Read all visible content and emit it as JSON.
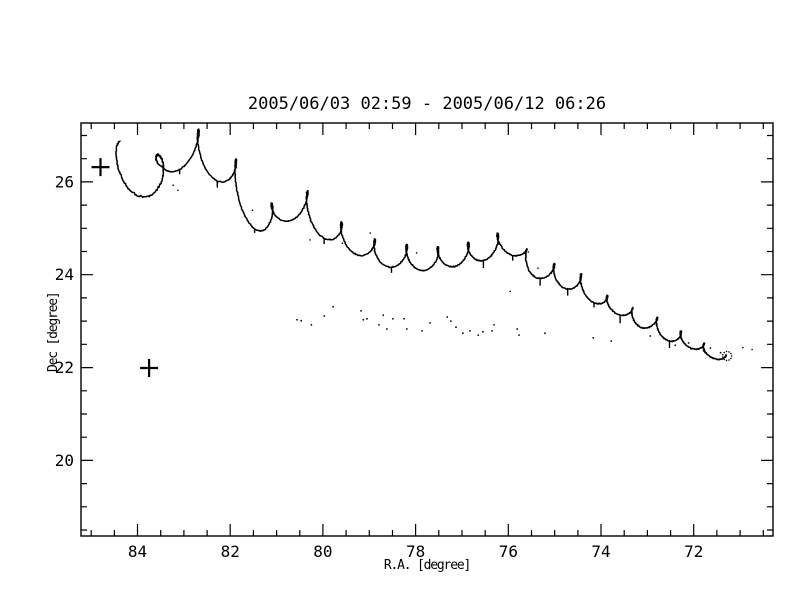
{
  "window": {
    "background": "#ffffff",
    "foreground": "#000000"
  },
  "chart_data": {
    "type": "line",
    "title": "2005/06/03 02:59 - 2005/06/12 06:26",
    "xlabel": "R.A. [degree]",
    "ylabel": "Dec [degree]",
    "xlim": [
      85.22,
      70.29
    ],
    "ylim": [
      18.37,
      27.27
    ],
    "x_axis_reversed": true,
    "grid": false,
    "x_ticks_major": [
      84,
      82,
      80,
      78,
      76,
      74,
      72
    ],
    "y_ticks_major": [
      20,
      22,
      24,
      26
    ],
    "minor_tick_interval": 0.5,
    "axis_style": "IDL-style box axes with inward major/minor ticks on all four sides",
    "line_color": "#000000",
    "series": [
      {
        "name": "main-trajectory",
        "style": "solid black line descending from upper-left to lower-right with cycloidal scallops and small loops/knots at the cusps",
        "color": "#000000",
        "start": {
          "ra": 84.4,
          "dec": 26.7
        },
        "end": {
          "ra": 71.4,
          "dec": 22.3
        },
        "envelope": [
          [
            84.38,
            26.65
          ],
          [
            83.73,
            26.26
          ],
          [
            82.82,
            27.08
          ],
          [
            81.96,
            26.43
          ],
          [
            81.31,
            25.4
          ],
          [
            80.49,
            25.78
          ],
          [
            79.63,
            25.07
          ],
          [
            78.66,
            24.64
          ],
          [
            77.69,
            24.53
          ],
          [
            76.83,
            24.64
          ],
          [
            76.07,
            24.86
          ],
          [
            75.32,
            24.28
          ],
          [
            74.56,
            24.0
          ],
          [
            73.81,
            23.5
          ],
          [
            73.05,
            23.13
          ],
          [
            72.3,
            22.75
          ],
          [
            71.61,
            22.44
          ],
          [
            71.39,
            22.33
          ]
        ],
        "scallop_period_deg": [
          0.87,
          0.48
        ],
        "scallop_depth_deg": [
          0.68,
          0.22
        ],
        "loop_factor": 1.3,
        "start_loop_factor": 1.9
      },
      {
        "name": "secondary-dotted-trail",
        "style": "sparse dotted trail below the main curve",
        "color": "#000000",
        "points": [
          [
            80.56,
            23.03
          ],
          [
            80.47,
            23.01
          ],
          [
            80.25,
            22.92
          ],
          [
            79.97,
            23.11
          ],
          [
            79.78,
            23.31
          ],
          [
            79.18,
            23.22
          ],
          [
            79.13,
            23.03
          ],
          [
            79.05,
            23.05
          ],
          [
            78.79,
            22.92
          ],
          [
            78.7,
            23.13
          ],
          [
            78.62,
            22.83
          ],
          [
            78.49,
            23.05
          ],
          [
            78.25,
            23.05
          ],
          [
            78.19,
            22.83
          ],
          [
            77.86,
            22.79
          ],
          [
            77.69,
            22.96
          ],
          [
            77.32,
            23.09
          ],
          [
            77.24,
            23.0
          ],
          [
            77.13,
            22.87
          ],
          [
            76.98,
            22.74
          ],
          [
            76.83,
            22.79
          ],
          [
            76.65,
            22.7
          ],
          [
            76.55,
            22.77
          ],
          [
            76.35,
            22.79
          ],
          [
            76.31,
            22.92
          ],
          [
            75.81,
            22.83
          ],
          [
            75.77,
            22.7
          ],
          [
            75.21,
            22.74
          ],
          [
            74.17,
            22.64
          ],
          [
            73.78,
            22.57
          ],
          [
            72.94,
            22.68
          ],
          [
            72.4,
            22.48
          ],
          [
            72.11,
            22.53
          ],
          [
            71.79,
            22.36
          ],
          [
            71.64,
            22.42
          ],
          [
            71.42,
            22.32
          ]
        ]
      },
      {
        "name": "end-dotted-circle",
        "style": "small dotted circle at trail end",
        "color": "#000000",
        "center": [
          71.28,
          22.25
        ],
        "radius_px": 4.5,
        "n_dots": 11
      },
      {
        "name": "stray-dots",
        "style": "scattered single-pixel specks near the main curve",
        "color": "#000000",
        "points": [
          [
            83.23,
            25.93
          ],
          [
            83.13,
            25.82
          ],
          [
            81.52,
            25.39
          ],
          [
            80.28,
            24.75
          ],
          [
            79.58,
            24.68
          ],
          [
            78.98,
            24.9
          ],
          [
            77.98,
            24.47
          ],
          [
            75.96,
            23.64
          ],
          [
            75.57,
            24.49
          ],
          [
            75.36,
            24.14
          ],
          [
            70.94,
            22.43
          ],
          [
            70.74,
            22.39
          ]
        ]
      }
    ],
    "markers": [
      {
        "name": "plus-marker-1",
        "shape": "plus",
        "ra": 84.8,
        "dec": 26.32
      },
      {
        "name": "plus-marker-2",
        "shape": "plus",
        "ra": 83.75,
        "dec": 21.99
      }
    ]
  }
}
